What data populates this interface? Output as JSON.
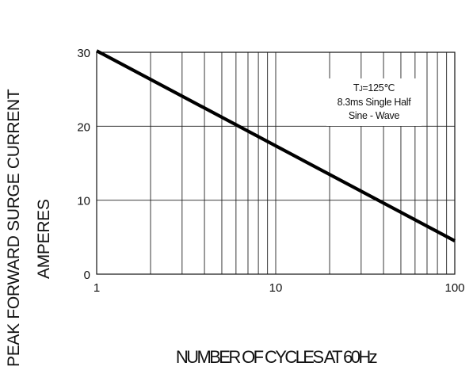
{
  "chart_data": {
    "type": "line",
    "y_axis_title_line1": "PEAK FORWARD SURGE CURRENT",
    "y_axis_title_line2": "AMPERES",
    "x_axis_title": "NUMBER OF CYCLES AT 60Hz",
    "x_scale": "log",
    "xlim": [
      1,
      100
    ],
    "ylim": [
      0,
      30
    ],
    "x_tick_labels": [
      "1",
      "10",
      "100"
    ],
    "y_tick_labels": [
      "0",
      "10",
      "20",
      "30"
    ],
    "grid": true,
    "annotation": [
      "TJ=125℃",
      "8.3ms Single Half",
      "Sine - Wave"
    ],
    "series": [
      {
        "x": [
          1,
          100
        ],
        "y": [
          30.2,
          4.5
        ]
      }
    ],
    "line_color": "#000000"
  }
}
